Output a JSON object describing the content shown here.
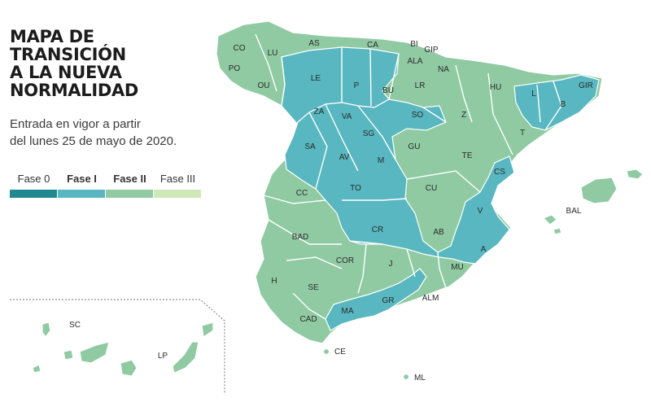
{
  "title_lines": [
    "MAPA DE",
    "TRANSICIÓN",
    "A LA NUEVA",
    "NORMALIDAD"
  ],
  "subtitle_lines": [
    "Entrada en vigor a partir",
    "del lunes 25 de mayo de 2020."
  ],
  "legend": [
    {
      "label": "Fase 0",
      "color": "#1f8a91",
      "bold": false
    },
    {
      "label": "Fase I",
      "color": "#58b7c0",
      "bold": true
    },
    {
      "label": "Fase II",
      "color": "#8fcaa2",
      "bold": true
    },
    {
      "label": "Fase III",
      "color": "#cfe8b8",
      "bold": false
    }
  ],
  "colors": {
    "fase_i": "#58b7c0",
    "fase_ii": "#8fcaa2",
    "border": "#ffffff",
    "sea": "#ffffff"
  },
  "provinces": [
    {
      "code": "CO",
      "phase": "Fase II"
    },
    {
      "code": "LU",
      "phase": "Fase II"
    },
    {
      "code": "AS",
      "phase": "Fase II"
    },
    {
      "code": "CA",
      "phase": "Fase II"
    },
    {
      "code": "BI",
      "phase": "Fase II"
    },
    {
      "code": "GIP",
      "phase": "Fase II"
    },
    {
      "code": "ALA",
      "phase": "Fase II"
    },
    {
      "code": "NA",
      "phase": "Fase II"
    },
    {
      "code": "PO",
      "phase": "Fase II"
    },
    {
      "code": "OU",
      "phase": "Fase II"
    },
    {
      "code": "LE",
      "phase": "Fase I"
    },
    {
      "code": "P",
      "phase": "Fase I"
    },
    {
      "code": "BU",
      "phase": "Fase I"
    },
    {
      "code": "LR",
      "phase": "Fase II"
    },
    {
      "code": "HU",
      "phase": "Fase II"
    },
    {
      "code": "GIR",
      "phase": "Fase I"
    },
    {
      "code": "L",
      "phase": "Fase I"
    },
    {
      "code": "B",
      "phase": "Fase I"
    },
    {
      "code": "ZA",
      "phase": "Fase I"
    },
    {
      "code": "VA",
      "phase": "Fase I"
    },
    {
      "code": "SO",
      "phase": "Fase I"
    },
    {
      "code": "Z",
      "phase": "Fase II"
    },
    {
      "code": "T",
      "phase": "Fase II"
    },
    {
      "code": "SA",
      "phase": "Fase I"
    },
    {
      "code": "AV",
      "phase": "Fase I"
    },
    {
      "code": "SG",
      "phase": "Fase I"
    },
    {
      "code": "GU",
      "phase": "Fase II"
    },
    {
      "code": "TE",
      "phase": "Fase II"
    },
    {
      "code": "M",
      "phase": "Fase I"
    },
    {
      "code": "CS",
      "phase": "Fase I"
    },
    {
      "code": "CC",
      "phase": "Fase II"
    },
    {
      "code": "TO",
      "phase": "Fase I"
    },
    {
      "code": "CU",
      "phase": "Fase II"
    },
    {
      "code": "V",
      "phase": "Fase I"
    },
    {
      "code": "BAD",
      "phase": "Fase II"
    },
    {
      "code": "CR",
      "phase": "Fase I"
    },
    {
      "code": "AB",
      "phase": "Fase I"
    },
    {
      "code": "A",
      "phase": "Fase I"
    },
    {
      "code": "COR",
      "phase": "Fase II"
    },
    {
      "code": "J",
      "phase": "Fase II"
    },
    {
      "code": "MU",
      "phase": "Fase II"
    },
    {
      "code": "H",
      "phase": "Fase II"
    },
    {
      "code": "SE",
      "phase": "Fase II"
    },
    {
      "code": "GR",
      "phase": "Fase I"
    },
    {
      "code": "ALM",
      "phase": "Fase II"
    },
    {
      "code": "MA",
      "phase": "Fase I"
    },
    {
      "code": "CAD",
      "phase": "Fase II"
    },
    {
      "code": "BAL",
      "phase": "Fase II"
    },
    {
      "code": "CE",
      "phase": "Fase II"
    },
    {
      "code": "ML",
      "phase": "Fase II"
    },
    {
      "code": "SC",
      "phase": "Fase II"
    },
    {
      "code": "LP",
      "phase": "Fase II"
    }
  ]
}
